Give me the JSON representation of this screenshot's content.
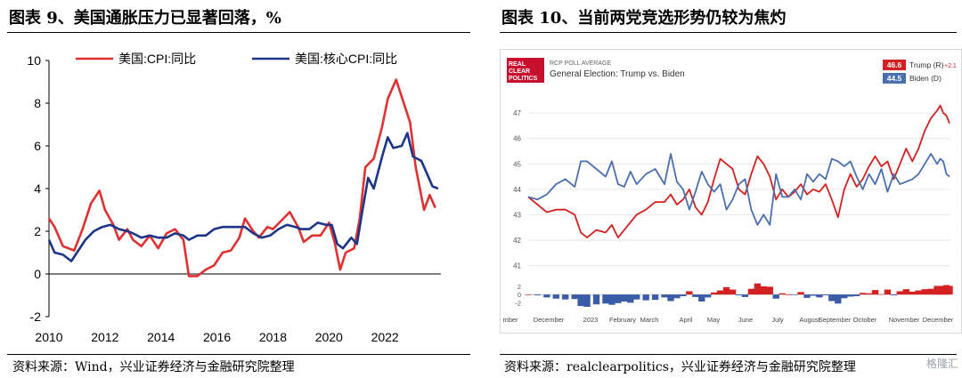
{
  "left": {
    "title": "图表 9、美国通胀压力已显著回落，%",
    "source": "资料来源：Wind，兴业证券经济与金融研究院整理"
  },
  "right": {
    "title": "图表 10、当前两党竞选形势仍较为焦灼",
    "source": "资料来源：realclearpolitics，兴业证券经济与金融研究院整理",
    "logo": "REAL CLEAR POLITICS",
    "poll_caption": "RCP POLL AVERAGE",
    "poll_title": "General Election: Trump vs. Biden"
  },
  "watermark": "格隆汇",
  "colors": {
    "red": "#e03030",
    "navy": "#1c3589",
    "trump": "#d42020",
    "biden": "#4a6fb0"
  },
  "chart_data": [
    {
      "type": "line",
      "x_axis_ticks": [
        "2010",
        "2012",
        "2014",
        "2016",
        "2018",
        "2020",
        "2022"
      ],
      "y_axis_ticks": [
        "-2",
        "0",
        "2",
        "4",
        "6",
        "8",
        "10"
      ],
      "ylim": [
        -2,
        10
      ],
      "xlim": [
        2010,
        2024
      ],
      "legend_position": "top",
      "grid": false,
      "series": [
        {
          "name": "美国:CPI:同比",
          "color": "#e03030",
          "points": [
            [
              2010.0,
              2.6
            ],
            [
              2010.2,
              2.2
            ],
            [
              2010.5,
              1.3
            ],
            [
              2010.9,
              1.1
            ],
            [
              2011.2,
              2.1
            ],
            [
              2011.5,
              3.3
            ],
            [
              2011.8,
              3.9
            ],
            [
              2012.0,
              3.0
            ],
            [
              2012.3,
              2.3
            ],
            [
              2012.5,
              1.6
            ],
            [
              2012.8,
              2.1
            ],
            [
              2013.0,
              1.6
            ],
            [
              2013.3,
              1.3
            ],
            [
              2013.6,
              1.8
            ],
            [
              2013.9,
              1.2
            ],
            [
              2014.2,
              1.9
            ],
            [
              2014.5,
              2.1
            ],
            [
              2014.8,
              1.6
            ],
            [
              2015.0,
              -0.1
            ],
            [
              2015.3,
              -0.1
            ],
            [
              2015.6,
              0.2
            ],
            [
              2015.9,
              0.4
            ],
            [
              2016.2,
              1.0
            ],
            [
              2016.5,
              1.1
            ],
            [
              2016.8,
              1.7
            ],
            [
              2017.0,
              2.6
            ],
            [
              2017.3,
              2.0
            ],
            [
              2017.5,
              1.7
            ],
            [
              2017.8,
              2.2
            ],
            [
              2018.0,
              2.1
            ],
            [
              2018.3,
              2.5
            ],
            [
              2018.6,
              2.9
            ],
            [
              2018.9,
              2.2
            ],
            [
              2019.1,
              1.5
            ],
            [
              2019.4,
              1.8
            ],
            [
              2019.7,
              1.8
            ],
            [
              2020.0,
              2.4
            ],
            [
              2020.2,
              1.5
            ],
            [
              2020.4,
              0.2
            ],
            [
              2020.6,
              1.0
            ],
            [
              2020.9,
              1.2
            ],
            [
              2021.1,
              2.6
            ],
            [
              2021.3,
              5.0
            ],
            [
              2021.6,
              5.4
            ],
            [
              2021.9,
              6.9
            ],
            [
              2022.1,
              8.2
            ],
            [
              2022.4,
              9.1
            ],
            [
              2022.6,
              8.3
            ],
            [
              2022.9,
              7.1
            ],
            [
              2023.1,
              5.0
            ],
            [
              2023.4,
              3.0
            ],
            [
              2023.6,
              3.7
            ],
            [
              2023.8,
              3.1
            ]
          ]
        },
        {
          "name": "美国:核心CPI:同比",
          "color": "#1c3589",
          "points": [
            [
              2010.0,
              1.6
            ],
            [
              2010.2,
              1.0
            ],
            [
              2010.5,
              0.9
            ],
            [
              2010.8,
              0.6
            ],
            [
              2011.0,
              1.0
            ],
            [
              2011.3,
              1.6
            ],
            [
              2011.6,
              2.0
            ],
            [
              2011.9,
              2.2
            ],
            [
              2012.2,
              2.3
            ],
            [
              2012.5,
              2.1
            ],
            [
              2012.8,
              2.0
            ],
            [
              2013.0,
              1.9
            ],
            [
              2013.3,
              1.7
            ],
            [
              2013.6,
              1.8
            ],
            [
              2013.9,
              1.7
            ],
            [
              2014.2,
              1.7
            ],
            [
              2014.5,
              1.9
            ],
            [
              2014.8,
              1.8
            ],
            [
              2015.0,
              1.6
            ],
            [
              2015.3,
              1.8
            ],
            [
              2015.6,
              1.8
            ],
            [
              2015.9,
              2.1
            ],
            [
              2016.2,
              2.2
            ],
            [
              2016.5,
              2.2
            ],
            [
              2016.8,
              2.2
            ],
            [
              2017.0,
              2.2
            ],
            [
              2017.3,
              1.9
            ],
            [
              2017.6,
              1.7
            ],
            [
              2017.9,
              1.8
            ],
            [
              2018.2,
              2.1
            ],
            [
              2018.5,
              2.3
            ],
            [
              2018.8,
              2.2
            ],
            [
              2019.0,
              2.1
            ],
            [
              2019.3,
              2.1
            ],
            [
              2019.6,
              2.4
            ],
            [
              2019.9,
              2.3
            ],
            [
              2020.1,
              2.3
            ],
            [
              2020.3,
              1.4
            ],
            [
              2020.5,
              1.2
            ],
            [
              2020.8,
              1.7
            ],
            [
              2021.0,
              1.4
            ],
            [
              2021.2,
              3.0
            ],
            [
              2021.4,
              4.5
            ],
            [
              2021.6,
              4.0
            ],
            [
              2021.9,
              5.5
            ],
            [
              2022.1,
              6.4
            ],
            [
              2022.3,
              5.9
            ],
            [
              2022.6,
              6.0
            ],
            [
              2022.8,
              6.6
            ],
            [
              2023.0,
              5.5
            ],
            [
              2023.3,
              5.3
            ],
            [
              2023.5,
              4.7
            ],
            [
              2023.7,
              4.1
            ],
            [
              2023.9,
              4.0
            ]
          ]
        }
      ]
    },
    {
      "type": "line",
      "x_axis_ticks": [
        "mber",
        "December",
        "2023",
        "February",
        "March",
        "April",
        "May",
        "June",
        "July",
        "August",
        "September",
        "October",
        "November",
        "December"
      ],
      "y_axis_ticks": [
        "41",
        "42",
        "43",
        "44",
        "45",
        "46",
        "47"
      ],
      "ylim": [
        40.6,
        47.6
      ],
      "spread_axis_ticks": [
        "2",
        "0",
        "-2"
      ],
      "spread_ylim": [
        -3,
        3.5
      ],
      "grid": true,
      "legend_position": "top-right",
      "legend": [
        {
          "name": "Trump (R)",
          "value": "46.6",
          "change": "+2.1",
          "color": "#d42020"
        },
        {
          "name": "Biden (D)",
          "value": "44.5",
          "change": "",
          "color": "#4a6fb0"
        }
      ],
      "series": [
        {
          "name": "Trump (R)",
          "color": "#d42020",
          "points": [
            [
              0,
              43.7
            ],
            [
              3,
              43.4
            ],
            [
              6,
              43.1
            ],
            [
              9,
              43.2
            ],
            [
              12,
              43.2
            ],
            [
              15,
              43.0
            ],
            [
              17,
              42.3
            ],
            [
              19,
              42.1
            ],
            [
              22,
              42.4
            ],
            [
              25,
              42.3
            ],
            [
              27,
              42.6
            ],
            [
              29,
              42.1
            ],
            [
              31,
              42.4
            ],
            [
              33,
              42.7
            ],
            [
              35,
              43.0
            ],
            [
              38,
              43.2
            ],
            [
              41,
              43.5
            ],
            [
              44,
              43.5
            ],
            [
              46,
              43.8
            ],
            [
              48,
              43.4
            ],
            [
              50,
              43.6
            ],
            [
              52,
              44.0
            ],
            [
              54,
              43.3
            ],
            [
              56,
              43.0
            ],
            [
              58,
              43.5
            ],
            [
              60,
              44.4
            ],
            [
              62,
              45.2
            ],
            [
              64,
              45.0
            ],
            [
              66,
              44.8
            ],
            [
              68,
              44.0
            ],
            [
              70,
              43.8
            ],
            [
              72,
              44.6
            ],
            [
              74,
              45.3
            ],
            [
              76,
              45.0
            ],
            [
              78,
              44.5
            ],
            [
              80,
              43.6
            ],
            [
              82,
              44.0
            ],
            [
              84,
              43.7
            ],
            [
              86,
              43.9
            ],
            [
              88,
              44.2
            ],
            [
              90,
              43.8
            ],
            [
              92,
              44.0
            ],
            [
              94,
              43.9
            ],
            [
              96,
              44.2
            ],
            [
              98,
              43.6
            ],
            [
              100,
              42.9
            ],
            [
              102,
              44.0
            ],
            [
              104,
              44.6
            ],
            [
              106,
              44.1
            ],
            [
              108,
              44.4
            ],
            [
              110,
              44.9
            ],
            [
              112,
              45.3
            ],
            [
              114,
              44.9
            ],
            [
              116,
              45.1
            ],
            [
              118,
              44.4
            ],
            [
              120,
              45.0
            ],
            [
              122,
              45.6
            ],
            [
              124,
              45.1
            ],
            [
              126,
              45.6
            ],
            [
              128,
              46.3
            ],
            [
              130,
              46.8
            ],
            [
              132,
              47.1
            ],
            [
              133,
              47.3
            ],
            [
              134,
              47.0
            ],
            [
              135,
              46.9
            ],
            [
              136,
              46.6
            ]
          ]
        },
        {
          "name": "Biden (D)",
          "color": "#4a6fb0",
          "points": [
            [
              0,
              43.7
            ],
            [
              3,
              43.6
            ],
            [
              6,
              43.8
            ],
            [
              9,
              44.2
            ],
            [
              12,
              44.4
            ],
            [
              15,
              44.1
            ],
            [
              17,
              45.1
            ],
            [
              19,
              45.1
            ],
            [
              22,
              44.8
            ],
            [
              25,
              44.5
            ],
            [
              27,
              45.1
            ],
            [
              29,
              44.2
            ],
            [
              31,
              44.1
            ],
            [
              33,
              44.7
            ],
            [
              35,
              44.2
            ],
            [
              38,
              44.6
            ],
            [
              41,
              44.8
            ],
            [
              44,
              44.2
            ],
            [
              46,
              45.4
            ],
            [
              48,
              44.3
            ],
            [
              50,
              44.0
            ],
            [
              52,
              43.2
            ],
            [
              54,
              43.9
            ],
            [
              56,
              44.7
            ],
            [
              58,
              44.2
            ],
            [
              60,
              43.9
            ],
            [
              62,
              44.2
            ],
            [
              64,
              43.2
            ],
            [
              66,
              43.6
            ],
            [
              68,
              44.2
            ],
            [
              70,
              44.4
            ],
            [
              72,
              43.2
            ],
            [
              74,
              42.6
            ],
            [
              76,
              43.0
            ],
            [
              78,
              42.6
            ],
            [
              80,
              44.6
            ],
            [
              82,
              43.7
            ],
            [
              84,
              43.7
            ],
            [
              86,
              44.0
            ],
            [
              88,
              43.6
            ],
            [
              90,
              44.6
            ],
            [
              92,
              44.3
            ],
            [
              94,
              44.6
            ],
            [
              96,
              44.4
            ],
            [
              98,
              45.2
            ],
            [
              100,
              45.1
            ],
            [
              102,
              44.9
            ],
            [
              104,
              45.1
            ],
            [
              106,
              44.5
            ],
            [
              108,
              44.0
            ],
            [
              110,
              44.6
            ],
            [
              112,
              44.2
            ],
            [
              114,
              44.8
            ],
            [
              116,
              43.9
            ],
            [
              118,
              44.6
            ],
            [
              120,
              44.2
            ],
            [
              122,
              44.3
            ],
            [
              124,
              44.4
            ],
            [
              126,
              44.6
            ],
            [
              128,
              45.0
            ],
            [
              130,
              45.4
            ],
            [
              132,
              45.0
            ],
            [
              133,
              45.2
            ],
            [
              134,
              45.1
            ],
            [
              135,
              44.6
            ],
            [
              136,
              44.5
            ]
          ]
        }
      ]
    }
  ]
}
